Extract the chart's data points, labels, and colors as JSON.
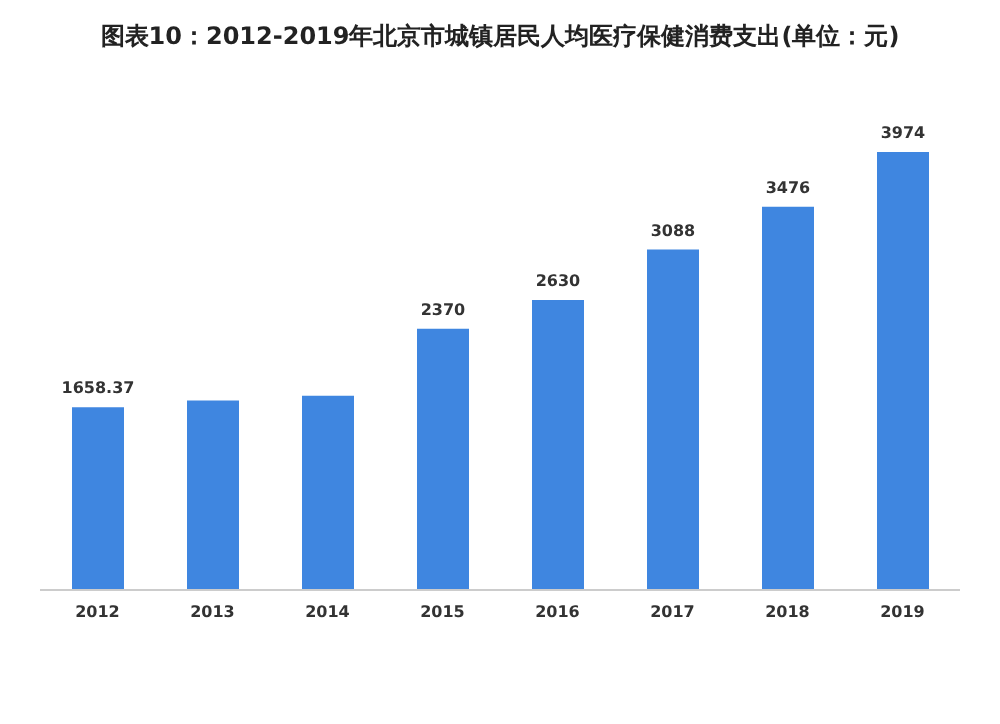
{
  "chart_data": {
    "type": "bar",
    "title": "图表10：2012-2019年北京市城镇居民人均医疗保健消费支出(单位：元)",
    "categories": [
      "2012",
      "2013",
      "2014",
      "2015",
      "2016",
      "2017",
      "2018",
      "2019"
    ],
    "values": [
      1658.37,
      1718,
      1762,
      2370,
      2630,
      3088,
      3476,
      3974
    ],
    "value_labels": [
      "1658.37",
      null,
      null,
      "2370",
      "2630",
      "3088",
      "3476",
      "3974"
    ],
    "color": "#3f86e0",
    "tick_labels": "x",
    "legend": false,
    "grid": false
  }
}
